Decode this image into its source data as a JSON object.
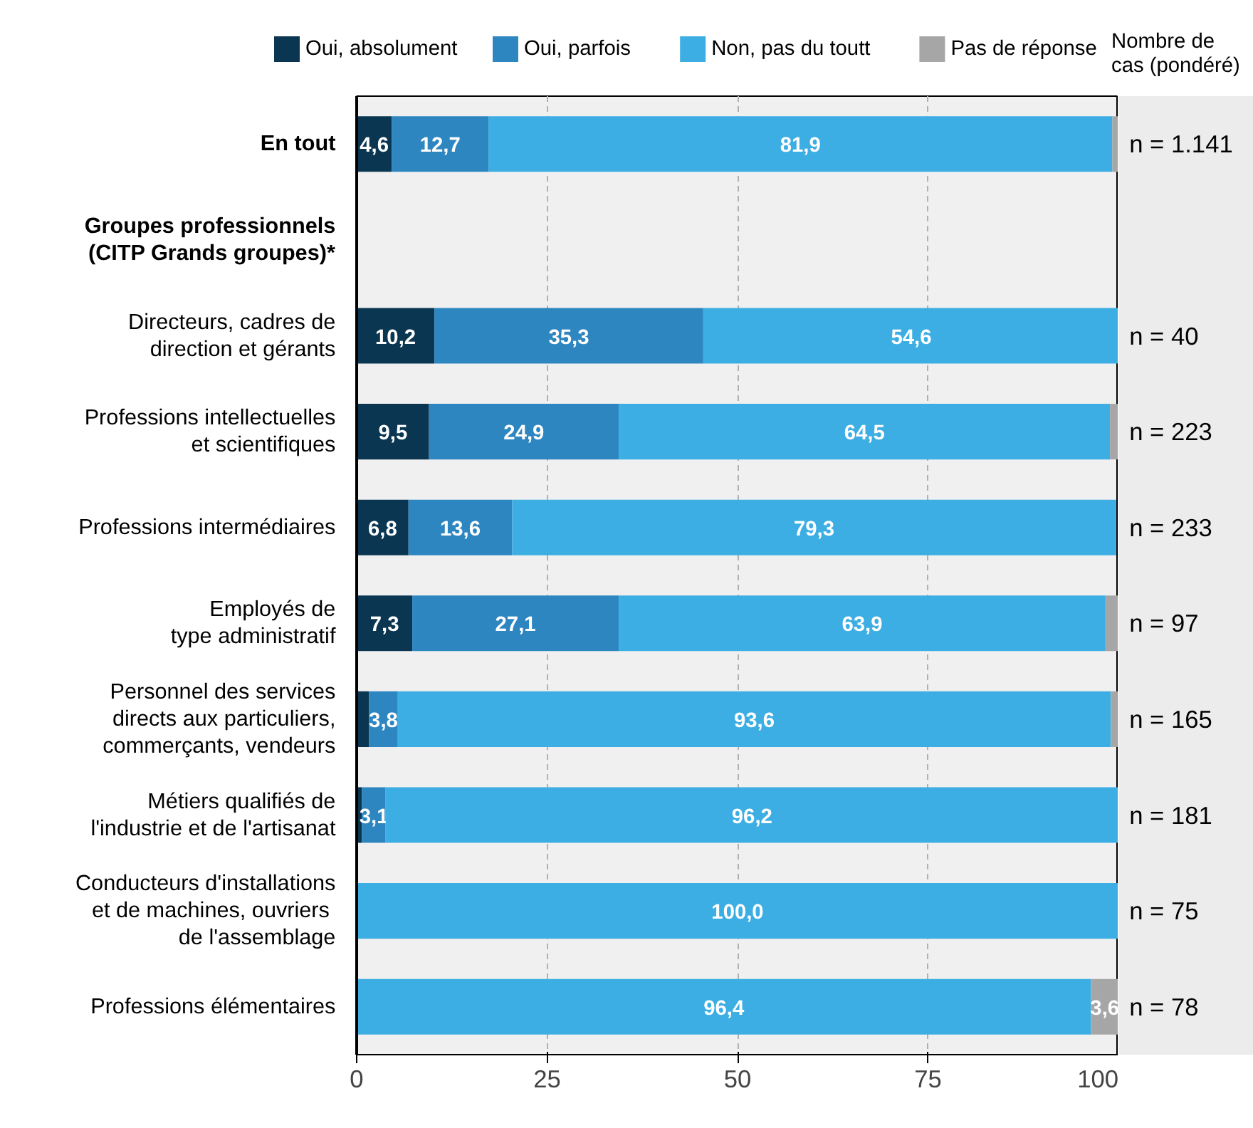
{
  "chart_data": {
    "type": "bar",
    "orientation": "horizontal",
    "stacked": true,
    "categories": [
      "En tout",
      "Groupes professionnels\n(CITP Grands groupes)*",
      "Directeurs, cadres de\ndirection et gérants",
      "Professions intellectuelles\net scientifiques",
      "Professions intermédiaires",
      "Employés de\ntype administratif",
      "Personnel des services\ndirects aux particuliers,\ncommerçants, vendeurs",
      "Métiers qualifiés de\nl'industrie et de l'artisanat",
      "Conducteurs d'installations\net de  machines, ouvriers\nde l'assemblage",
      "Professions élémentaires"
    ],
    "series": [
      {
        "name": "Oui, absolument",
        "color": "#0a3652",
        "values": [
          4.6,
          null,
          10.2,
          9.5,
          6.8,
          7.3,
          1.6,
          0.7,
          0,
          0
        ],
        "value_labels": [
          "4,6",
          null,
          "10,2",
          "9,5",
          "6,8",
          "7,3",
          null,
          null,
          null,
          null
        ]
      },
      {
        "name": "Oui, parfois",
        "color": "#2e86c1",
        "values": [
          12.7,
          null,
          35.3,
          24.9,
          13.6,
          27.1,
          3.8,
          3.1,
          0,
          0
        ],
        "value_labels": [
          "12,7",
          null,
          "35,3",
          "24,9",
          "13,6",
          "27,1",
          "3,8",
          "3,1",
          null,
          null
        ]
      },
      {
        "name": "Non, pas du toutt",
        "color": "#3daee3",
        "values": [
          81.9,
          null,
          54.6,
          64.5,
          79.3,
          63.9,
          93.6,
          96.2,
          100.0,
          96.4
        ],
        "value_labels": [
          "81,9",
          null,
          "54,6",
          "64,5",
          "79,3",
          "63,9",
          "93,6",
          "96,2",
          "100,0",
          "96,4"
        ]
      },
      {
        "name": "Pas de réponse",
        "color": "#a6a6a6",
        "values": [
          0.8,
          null,
          0,
          1.1,
          null,
          1.7,
          0.9,
          0,
          0,
          3.6
        ],
        "value_labels": [
          null,
          null,
          null,
          null,
          null,
          null,
          null,
          null,
          null,
          "3,6"
        ]
      }
    ],
    "xlim": [
      0,
      100
    ],
    "xticks": [
      0,
      25,
      50,
      75,
      100
    ],
    "grid": "x",
    "legend": "top",
    "annotations": [
      "Nombre de\ncas (pondéré)",
      "n = 1.141",
      "n = 40",
      "n = 223",
      "n = 233",
      "n = 97",
      "n = 165",
      "n = 181",
      "n = 75",
      "n = 78"
    ]
  }
}
